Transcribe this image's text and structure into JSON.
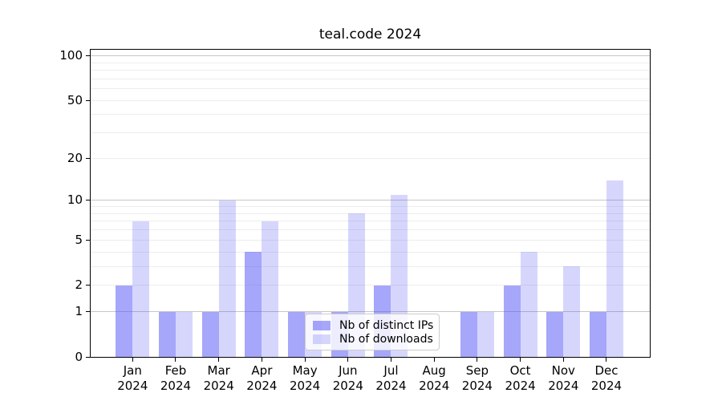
{
  "chart_data": {
    "type": "bar",
    "title": "teal.code 2024",
    "categories": [
      "Jan",
      "Feb",
      "Mar",
      "Apr",
      "May",
      "Jun",
      "Jul",
      "Aug",
      "Sep",
      "Oct",
      "Nov",
      "Dec"
    ],
    "year_label": "2024",
    "series": [
      {
        "name": "Nb of distinct IPs",
        "color": "rgba(85,85,245,0.52)",
        "values": [
          2,
          1,
          1,
          4,
          1,
          1,
          2,
          0,
          1,
          2,
          1,
          1
        ]
      },
      {
        "name": "Nb of downloads",
        "color": "rgba(85,85,245,0.24)",
        "values": [
          7,
          1,
          10,
          7,
          1,
          8,
          11,
          0,
          1,
          4,
          3,
          14
        ]
      }
    ],
    "yscale": "log1p",
    "ylim": [
      0,
      110
    ],
    "yticks": [
      100,
      50,
      20,
      10,
      5,
      2,
      1,
      0
    ],
    "grid": {
      "major_values": [
        100,
        10,
        1
      ],
      "minor_values": [
        90,
        80,
        70,
        60,
        50,
        40,
        30,
        20,
        9,
        8,
        7,
        6,
        5,
        4,
        3,
        2
      ],
      "major_color": "#c6c6c6",
      "minor_color": "#ededed"
    },
    "legend_position": "lower center",
    "axis_color": "#000000",
    "background_color": "#ffffff"
  }
}
